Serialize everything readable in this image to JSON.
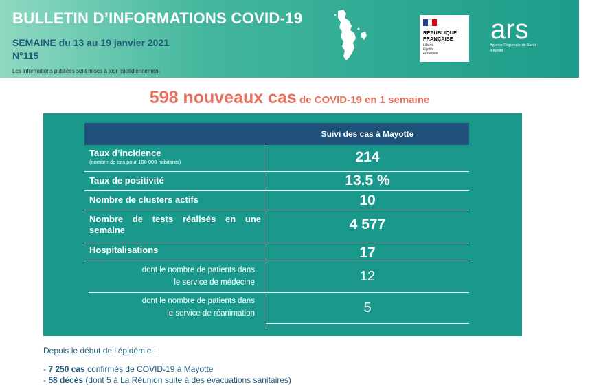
{
  "header": {
    "title": "BULLETIN D’INFORMATIONS COVID-19",
    "week": "SEMAINE du 13 au 19 janvier  2021",
    "number": "N°115",
    "note": "Les informations publiées sont mises à jour quotidiennement",
    "republique": [
      "RÉPUBLIQUE",
      "FRANÇAISE"
    ],
    "motto": [
      "Liberté",
      "Égalité",
      "Fraternité"
    ],
    "ars_logo": "ars",
    "ars_sub1": "Agence Régionale de Santé",
    "ars_sub2": "Mayotte"
  },
  "headline": {
    "big": "598 nouveaux cas",
    "small": " de COVID-19 en 1 semaine"
  },
  "table": {
    "header": "Suivi des cas à Mayotte",
    "rows": [
      {
        "label": "Taux d’incidence",
        "sublabel": "(nombre de cas pour 100 000 habitants)",
        "value": "214"
      },
      {
        "label": "Taux de positivité",
        "value": "13.5 %"
      },
      {
        "label": "Nombre de clusters actifs",
        "value": "10"
      },
      {
        "label": "Nombre de tests réalisés en une semaine",
        "value": "4 577"
      },
      {
        "label": "Hospitalisations",
        "value": "17"
      },
      {
        "label_line1": "dont le nombre de patients dans",
        "label_line2": "le service de médecine",
        "value": "12"
      },
      {
        "label_line1": "dont le nombre de patients dans",
        "label_line2": "le service de réanimation",
        "value": "5"
      }
    ]
  },
  "footer": {
    "intro": "Depuis le début de l’épidémie :",
    "items": [
      {
        "prefix": "- ",
        "bold": "7 250 cas",
        "rest": " confirmés de COVID-19 à Mayotte"
      },
      {
        "prefix": "- ",
        "bold": "58 décès",
        "rest": " (dont 5 à La Réunion suite à des évacuations sanitaires)"
      }
    ]
  },
  "colors": {
    "teal_panel": "#1a988c",
    "table_header": "#1f5079",
    "headline": "#e8705f",
    "text_navy": "#1f5a78"
  }
}
